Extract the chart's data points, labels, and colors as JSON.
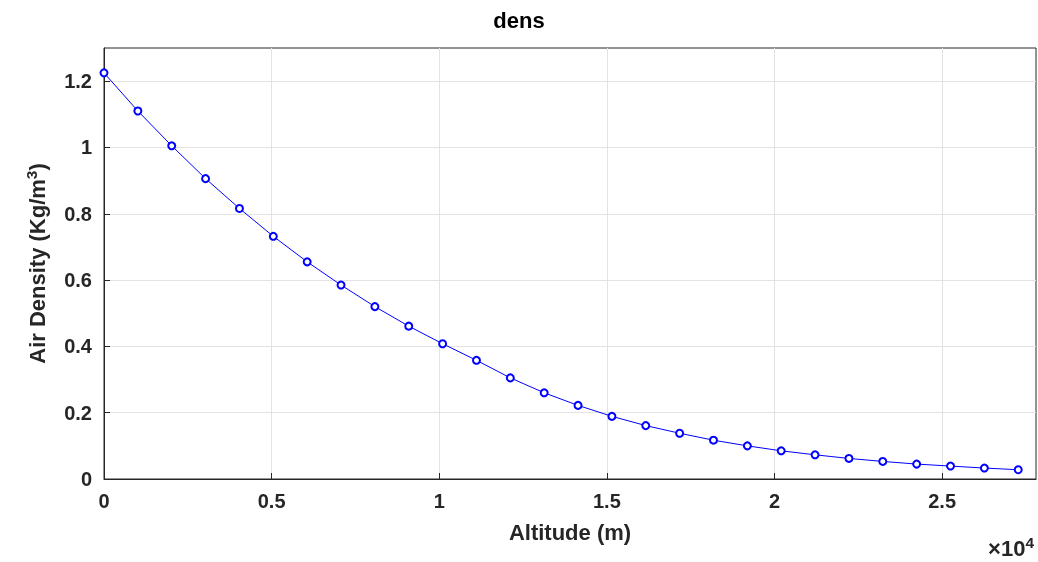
{
  "chart_data": {
    "type": "line",
    "title": "dens",
    "xlabel": "Altitude (m)",
    "ylabel": "Air Density (Kg/m$^{3}$)",
    "annotations": [
      "×10$^{4}$"
    ],
    "x": [
      0,
      0.101,
      0.202,
      0.303,
      0.404,
      0.505,
      0.606,
      0.707,
      0.808,
      0.909,
      1.01,
      1.111,
      1.212,
      1.313,
      1.414,
      1.515,
      1.616,
      1.717,
      1.818,
      1.919,
      2.02,
      2.121,
      2.222,
      2.323,
      2.424,
      2.525,
      2.626,
      2.727
    ],
    "series": [
      {
        "color": "#0000ff",
        "values": [
          1.225,
          1.11,
          1.005,
          0.906,
          0.816,
          0.732,
          0.655,
          0.585,
          0.52,
          0.461,
          0.408,
          0.358,
          0.305,
          0.26,
          0.222,
          0.189,
          0.161,
          0.138,
          0.117,
          0.1,
          0.085,
          0.073,
          0.062,
          0.053,
          0.045,
          0.039,
          0.033,
          0.028
        ]
      }
    ],
    "xlim": [
      0,
      2.78
    ],
    "xticks": [
      0,
      0.5,
      1,
      1.5,
      2,
      2.5
    ],
    "ylim": [
      0,
      1.3
    ],
    "yticks": [
      0,
      0.2,
      0.4,
      0.6,
      0.8,
      1,
      1.2
    ],
    "grid": true,
    "marker": "circle",
    "line_style": "solid"
  }
}
